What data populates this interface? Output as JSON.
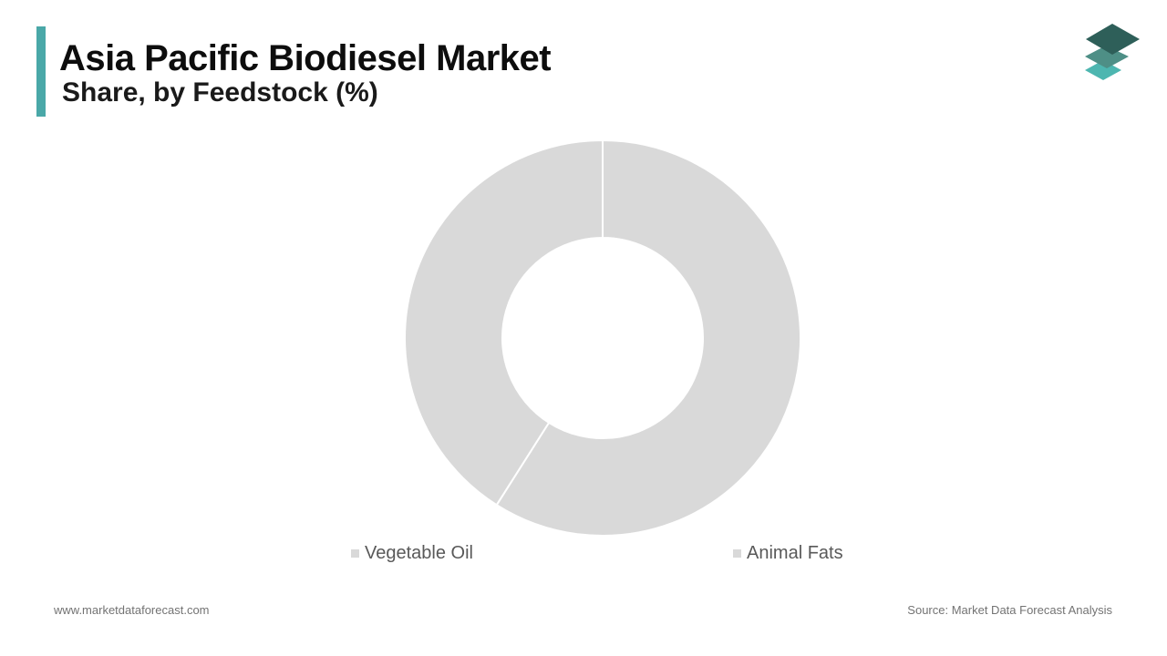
{
  "header": {
    "title": "Asia Pacific Biodiesel Market",
    "subtitle": "Share, by Feedstock (%)"
  },
  "logo": {
    "icon": "layered-stack-icon",
    "colors": [
      "#2e5f59",
      "#4e8f86",
      "#4db6b0"
    ]
  },
  "accent_color": "#4aa8a8",
  "chart_data": {
    "type": "pie",
    "donut": true,
    "title": "Share, by Feedstock (%)",
    "categories": [
      "Vegetable Oil",
      "Animal Fats"
    ],
    "values": [
      59,
      41
    ],
    "colors": [
      "#d9d9d9",
      "#d9d9d9"
    ],
    "legend_position": "bottom"
  },
  "legend": {
    "items": [
      {
        "label": "Vegetable Oil",
        "color": "#d9d9d9"
      },
      {
        "label": "Animal Fats",
        "color": "#d9d9d9"
      }
    ]
  },
  "footer": {
    "website": "www.marketdataforecast.com",
    "source": "Source: Market Data Forecast Analysis"
  }
}
